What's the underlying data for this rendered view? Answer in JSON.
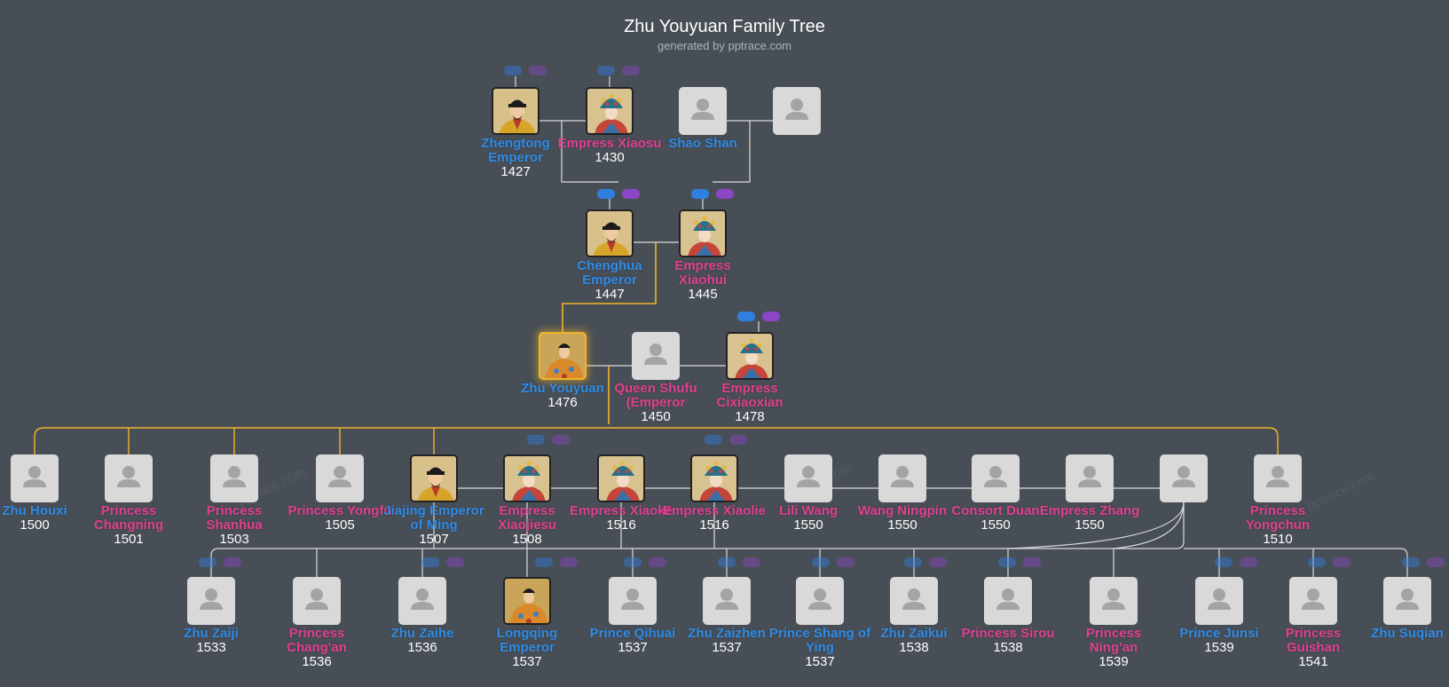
{
  "header": {
    "title": "Zhu Youyuan Family Tree",
    "subtitle": "generated by pptrace.com"
  },
  "watermark": "pptrace.com",
  "colors": {
    "background": "#484e56",
    "male": "#2f8be6",
    "female": "#e0408f",
    "descent_line": "#f0b429",
    "connector": "#dcdcdc"
  },
  "people": {
    "zhengtong": {
      "name": "Zhengtong Emperor",
      "year": "1427",
      "sex": "m",
      "photo": "portrait-emperor"
    },
    "xiaosu": {
      "name": "Empress Xiaosu",
      "year": "1430",
      "sex": "f",
      "photo": "portrait-empress"
    },
    "shaoshan": {
      "name": "Shao Shan",
      "year": "",
      "sex": "m",
      "photo": "placeholder"
    },
    "shaowife": {
      "name": "",
      "year": "",
      "sex": "f",
      "photo": "placeholder"
    },
    "chenghua": {
      "name": "Chenghua Emperor",
      "year": "1447",
      "sex": "m",
      "photo": "portrait-emperor"
    },
    "xiaohui": {
      "name": "Empress Xiaohui",
      "year": "1445",
      "sex": "f",
      "photo": "portrait-empress"
    },
    "youyuan": {
      "name": "Zhu Youyuan",
      "year": "1476",
      "sex": "m",
      "photo": "portrait-robed"
    },
    "shufu": {
      "name": "Queen Shufu (Emperor",
      "year": "1450",
      "sex": "f",
      "photo": "placeholder"
    },
    "cixiaoxian": {
      "name": "Empress Cixiaoxian",
      "year": "1478",
      "sex": "f",
      "photo": "portrait-empress"
    },
    "houxi": {
      "name": "Zhu Houxi",
      "year": "1500",
      "sex": "m",
      "photo": "placeholder"
    },
    "changning": {
      "name": "Princess Changning",
      "year": "1501",
      "sex": "f",
      "photo": "placeholder"
    },
    "shanhua": {
      "name": "Princess Shanhua",
      "year": "1503",
      "sex": "f",
      "photo": "placeholder"
    },
    "yongfu": {
      "name": "Princess Yongfu",
      "year": "1505",
      "sex": "f",
      "photo": "placeholder"
    },
    "jiajing": {
      "name": "Jiajing Emperor of Ming",
      "year": "1507",
      "sex": "m",
      "photo": "portrait-emperor"
    },
    "xiaojiesu": {
      "name": "Empress Xiaojiesu",
      "year": "1508",
      "sex": "f",
      "photo": "portrait-empress"
    },
    "xiaoke": {
      "name": "Empress Xiaoke",
      "year": "1516",
      "sex": "f",
      "photo": "portrait-empress"
    },
    "xiaolie": {
      "name": "Empress Xiaolie",
      "year": "1516",
      "sex": "f",
      "photo": "portrait-empress"
    },
    "liliwang": {
      "name": "Lili Wang",
      "year": "1550",
      "sex": "f",
      "photo": "placeholder"
    },
    "ningpin": {
      "name": "Wang Ningpin",
      "year": "1550",
      "sex": "f",
      "photo": "placeholder"
    },
    "duan": {
      "name": "Consort Duan",
      "year": "1550",
      "sex": "f",
      "photo": "placeholder"
    },
    "ezhang": {
      "name": "Empress Zhang",
      "year": "1550",
      "sex": "f",
      "photo": "placeholder"
    },
    "unknown": {
      "name": "",
      "year": "",
      "sex": "f",
      "photo": "placeholder"
    },
    "yongchun": {
      "name": "Princess Yongchun",
      "year": "1510",
      "sex": "f",
      "photo": "placeholder"
    },
    "zaiji": {
      "name": "Zhu Zaiji",
      "year": "1533",
      "sex": "m",
      "photo": "placeholder"
    },
    "changan": {
      "name": "Princess Chang'an",
      "year": "1536",
      "sex": "f",
      "photo": "placeholder"
    },
    "zaihe": {
      "name": "Zhu Zaihe",
      "year": "1536",
      "sex": "m",
      "photo": "placeholder"
    },
    "longqing": {
      "name": "Longqing Emperor",
      "year": "1537",
      "sex": "m",
      "photo": "portrait-robed"
    },
    "qihuai": {
      "name": "Prince Qihuai",
      "year": "1537",
      "sex": "m",
      "photo": "placeholder"
    },
    "zaizhen": {
      "name": "Zhu Zaizhen",
      "year": "1537",
      "sex": "m",
      "photo": "placeholder"
    },
    "shang": {
      "name": "Prince Shang of Ying",
      "year": "1537",
      "sex": "m",
      "photo": "placeholder"
    },
    "zaikui": {
      "name": "Zhu Zaikui",
      "year": "1538",
      "sex": "m",
      "photo": "placeholder"
    },
    "sirou": {
      "name": "Princess Sirou",
      "year": "1538",
      "sex": "f",
      "photo": "placeholder"
    },
    "ningan": {
      "name": "Princess Ning'an",
      "year": "1539",
      "sex": "f",
      "photo": "placeholder"
    },
    "junsi": {
      "name": "Prince Junsi",
      "year": "1539",
      "sex": "m",
      "photo": "placeholder"
    },
    "guishan": {
      "name": "Princess Guishan",
      "year": "1541",
      "sex": "f",
      "photo": "placeholder"
    },
    "suqian": {
      "name": "Zhu Suqian",
      "year": "",
      "sex": "m",
      "photo": "placeholder"
    }
  }
}
